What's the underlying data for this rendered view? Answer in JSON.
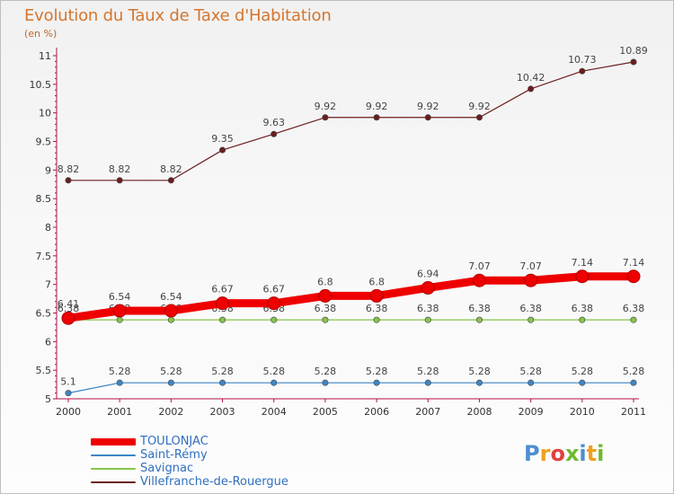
{
  "header": {
    "title": "Evolution du Taux de Taxe d'Habitation",
    "subtitle": "(en %)"
  },
  "logo": {
    "letters": [
      "P",
      "r",
      "o",
      "x",
      "i",
      "t",
      "i"
    ],
    "colors": [
      "#4a8fd0",
      "#f0a020",
      "#e04040",
      "#70b830",
      "#4a8fd0",
      "#f0a020",
      "#70b830"
    ]
  },
  "chart_data": {
    "type": "line",
    "title": "Evolution du Taux de Taxe d'Habitation",
    "subtitle": "(en %)",
    "xlabel": "",
    "ylabel": "(en %)",
    "x": [
      "2000",
      "2001",
      "2002",
      "2003",
      "2004",
      "2005",
      "2006",
      "2007",
      "2008",
      "2009",
      "2010",
      "2011"
    ],
    "ylim": [
      5,
      11
    ],
    "yticks": [
      "5",
      "5.5",
      "6",
      "6.5",
      "7",
      "7.5",
      "8",
      "8.5",
      "9",
      "9.5",
      "10",
      "10.5",
      "11"
    ],
    "legend_position": "bottom-left",
    "grid": false,
    "series": [
      {
        "name": "TOULONJAC",
        "color": "#ee0000",
        "emphasis": "thick",
        "values": [
          6.41,
          6.54,
          6.54,
          6.67,
          6.67,
          6.8,
          6.8,
          6.94,
          7.07,
          7.07,
          7.14,
          7.14
        ],
        "labels": [
          "6.41",
          "6.54",
          "6.54",
          "6.67",
          "6.67",
          "6.8",
          "6.8",
          "6.94",
          "7.07",
          "7.07",
          "7.14",
          "7.14"
        ]
      },
      {
        "name": "Saint-Rémy",
        "color": "#3d86c6",
        "emphasis": "normal",
        "values": [
          5.1,
          5.28,
          5.28,
          5.28,
          5.28,
          5.28,
          5.28,
          5.28,
          5.28,
          5.28,
          5.28,
          5.28
        ],
        "labels": [
          "5.1",
          "5.28",
          "5.28",
          "5.28",
          "5.28",
          "5.28",
          "5.28",
          "5.28",
          "5.28",
          "5.28",
          "5.28",
          "5.28"
        ]
      },
      {
        "name": "Savignac",
        "color": "#86c54a",
        "emphasis": "normal",
        "values": [
          6.38,
          6.38,
          6.38,
          6.38,
          6.38,
          6.38,
          6.38,
          6.38,
          6.38,
          6.38,
          6.38,
          6.38
        ],
        "labels": [
          "6.38",
          "6.38",
          "6.38",
          "6.38",
          "6.38",
          "6.38",
          "6.38",
          "6.38",
          "6.38",
          "6.38",
          "6.38",
          "6.38"
        ]
      },
      {
        "name": "Villefranche-de-Rouergue",
        "color": "#6b1e1e",
        "emphasis": "normal",
        "values": [
          8.82,
          8.82,
          8.82,
          9.35,
          9.63,
          9.92,
          9.92,
          9.92,
          9.92,
          10.42,
          10.73,
          10.89
        ],
        "labels": [
          "8.82",
          "8.82",
          "8.82",
          "9.35",
          "9.63",
          "9.92",
          "9.92",
          "9.92",
          "9.92",
          "10.42",
          "10.73",
          "10.89"
        ]
      }
    ]
  }
}
